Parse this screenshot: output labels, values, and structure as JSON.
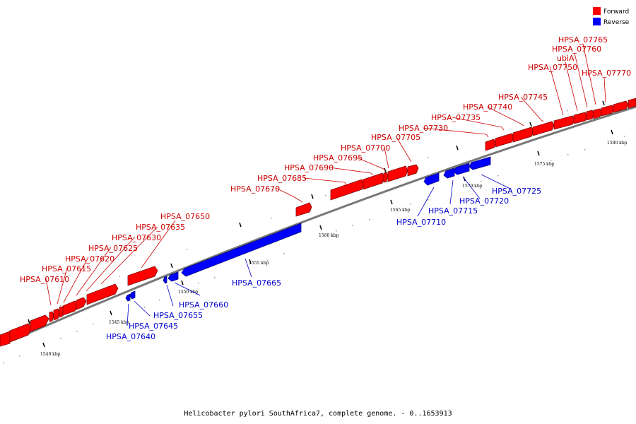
{
  "caption": "Helicobacter pylori SouthAfrica7, complete genome. - 0..1653913",
  "legend": {
    "forward_label": "Forward",
    "reverse_label": "Reverse",
    "forward_color": "#ff0000",
    "reverse_color": "#0000ff"
  },
  "axis": {
    "unit": "kbp",
    "tick_labels": [
      "1540 kbp",
      "1545 kbp",
      "1550 kbp",
      "1555 kbp",
      "1560 kbp",
      "1565 kbp",
      "1570 kbp",
      "1575 kbp",
      "1580 kbp"
    ]
  },
  "genes": {
    "forward": [
      "HPSA_07610",
      "HPSA_07615",
      "HPSA_07620",
      "HPSA_07625",
      "HPSA_07630",
      "HPSA_07635",
      "HPSA_07650",
      "HPSA_07670",
      "HPSA_07685",
      "HPSA_07690",
      "HPSA_07695",
      "HPSA_07700",
      "HPSA_07705",
      "HPSA_07730",
      "HPSA_07735",
      "HPSA_07740",
      "HPSA_07745",
      "HPSA_07750",
      "ubiA",
      "HPSA_07760",
      "HPSA_07765",
      "HPSA_07770"
    ],
    "reverse": [
      "HPSA_07640",
      "HPSA_07645",
      "HPSA_07655",
      "HPSA_07660",
      "HPSA_07665",
      "HPSA_07710",
      "HPSA_07715",
      "HPSA_07720",
      "HPSA_07725"
    ]
  }
}
